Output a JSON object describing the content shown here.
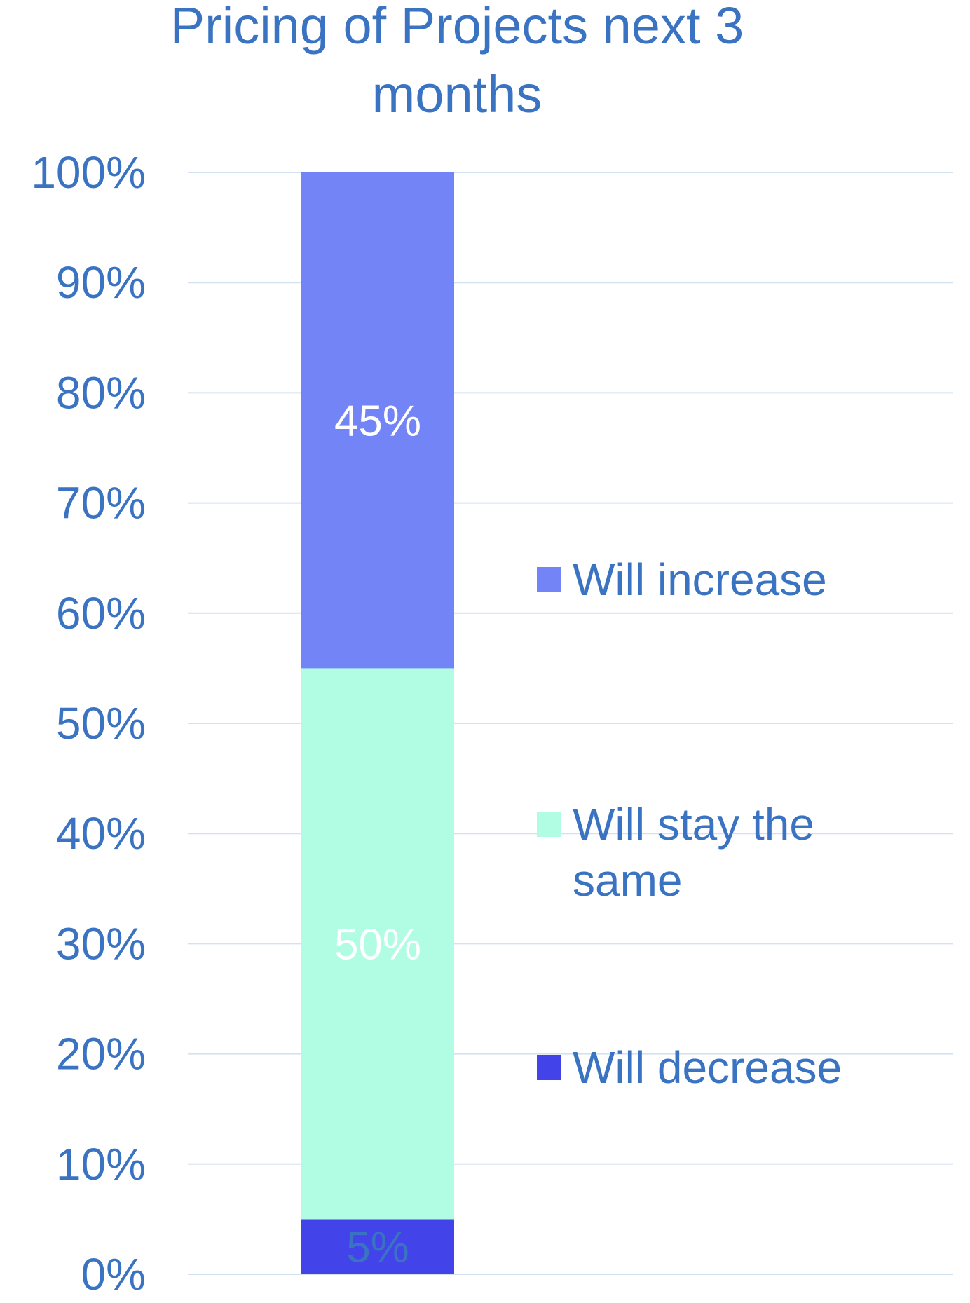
{
  "chart_data": {
    "type": "bar",
    "stacked": true,
    "title": "Pricing of Projects next 3 months",
    "title_lines": [
      "Pricing of Projects next 3",
      "months"
    ],
    "categories": [
      ""
    ],
    "series": [
      {
        "name": "Will decrease",
        "values": [
          5
        ],
        "label": "5%",
        "color": "#4343ea",
        "label_color": "#3a73c2"
      },
      {
        "name": "Will stay the same",
        "name_lines": [
          "Will stay the",
          "same"
        ],
        "values": [
          50
        ],
        "label": "50%",
        "color": "#b0fde4",
        "label_color": "#ffffff"
      },
      {
        "name": "Will increase",
        "values": [
          45
        ],
        "label": "45%",
        "color": "#7384f6",
        "label_color": "#ffffff"
      }
    ],
    "legend_order": [
      "Will increase",
      "Will stay the same",
      "Will decrease"
    ],
    "ylim": [
      0,
      100
    ],
    "yticks": [
      "0%",
      "10%",
      "20%",
      "30%",
      "40%",
      "50%",
      "60%",
      "70%",
      "80%",
      "90%",
      "100%"
    ],
    "xlabel": "",
    "ylabel": "",
    "grid": true,
    "legend_position": "right",
    "colors": {
      "text": "#3a73c2",
      "grid": "#d3e2f1"
    }
  }
}
